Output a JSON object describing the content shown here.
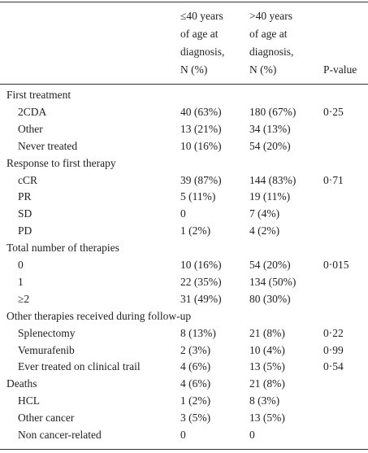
{
  "header": {
    "columns": [
      [
        "≤40 years",
        "of age at",
        "diagnosis,",
        "N (%)"
      ],
      [
        ">40 years",
        "of age at",
        "diagnosis,",
        "N (%)"
      ],
      [
        "P-value"
      ]
    ]
  },
  "sections": [
    {
      "title": "First treatment",
      "rows": [
        {
          "label": "2CDA",
          "a": "40 (63%)",
          "b": "180 (67%)",
          "p": "0·25"
        },
        {
          "label": "Other",
          "a": "13 (21%)",
          "b": "34 (13%)"
        },
        {
          "label": "Never treated",
          "a": "10 (16%)",
          "b": "54 (20%)"
        }
      ]
    },
    {
      "title": "Response to first therapy",
      "rows": [
        {
          "label": "cCR",
          "a": "39 (87%)",
          "b": "144 (83%)",
          "p": "0·71"
        },
        {
          "label": "PR",
          "a": "5 (11%)",
          "b": "19 (11%)"
        },
        {
          "label": "SD",
          "a": "0",
          "b": "7 (4%)"
        },
        {
          "label": "PD",
          "a": "1 (2%)",
          "b": "4 (2%)"
        }
      ]
    },
    {
      "title": "Total number of therapies",
      "rows": [
        {
          "label": "0",
          "a": "10 (16%)",
          "b": "54 (20%)",
          "p": "0·015"
        },
        {
          "label": "1",
          "a": "22 (35%)",
          "b": "134 (50%)"
        },
        {
          "label": "≥2",
          "a": "31 (49%)",
          "b": "80 (30%)"
        }
      ]
    },
    {
      "title": "Other therapies received during follow-up",
      "rows": [
        {
          "label": "Splenectomy",
          "a": "8 (13%)",
          "b": "21 (8%)",
          "p": "0·22"
        },
        {
          "label": "Vemurafenib",
          "a": "2 (3%)",
          "b": "10 (4%)",
          "p": "0·99"
        },
        {
          "label": "Ever treated on clinical trail",
          "a": "4 (6%)",
          "b": "13 (5%)",
          "p": "0·54"
        }
      ]
    },
    {
      "title": "Deaths",
      "a": "4 (6%)",
      "b": "21 (8%)",
      "rows": [
        {
          "label": "HCL",
          "a": "1 (2%)",
          "b": "8 (3%)"
        },
        {
          "label": "Other cancer",
          "a": "3 (5%)",
          "b": "13 (5%)"
        },
        {
          "label": "Non cancer-related",
          "a": "0",
          "b": "0"
        }
      ]
    }
  ]
}
